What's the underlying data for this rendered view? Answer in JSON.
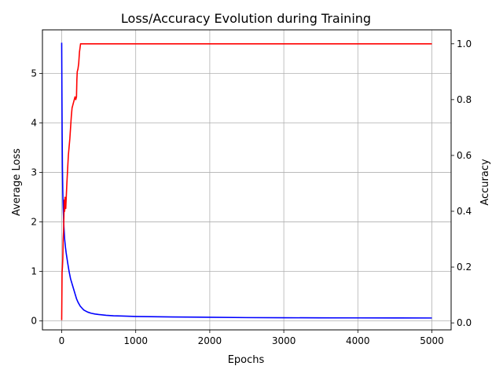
{
  "chart_data": {
    "type": "line",
    "title": "Loss/Accuracy Evolution during Training",
    "xlabel": "Epochs",
    "ylabel_left": "Average Loss",
    "ylabel_right": "Accuracy",
    "xlim": [
      -260,
      5260
    ],
    "ylim_left": [
      -0.18,
      5.88
    ],
    "ylim_right": [
      -0.025,
      1.05
    ],
    "x_ticks": [
      0,
      1000,
      2000,
      3000,
      4000,
      5000
    ],
    "x_tick_labels": [
      "0",
      "1000",
      "2000",
      "3000",
      "4000",
      "5000"
    ],
    "y_left_ticks": [
      0,
      1,
      2,
      3,
      4,
      5
    ],
    "y_left_tick_labels": [
      "0",
      "1",
      "2",
      "3",
      "4",
      "5"
    ],
    "y_right_ticks": [
      0.0,
      0.2,
      0.4,
      0.6,
      0.8,
      1.0
    ],
    "y_right_tick_labels": [
      "0.0",
      "0.2",
      "0.4",
      "0.6",
      "0.8",
      "1.0"
    ],
    "grid": true,
    "series": [
      {
        "axis": "left",
        "color": "#0000ff",
        "x": [
          0,
          3,
          6,
          10,
          15,
          20,
          30,
          40,
          50,
          60,
          80,
          100,
          120,
          150,
          180,
          200,
          220,
          250,
          280,
          300,
          350,
          400,
          450,
          500,
          600,
          700,
          800,
          1000,
          1500,
          2000,
          2500,
          3000,
          3500,
          4000,
          4500,
          5000
        ],
        "values": [
          5.62,
          4.6,
          3.8,
          3.1,
          2.6,
          2.3,
          1.9,
          1.65,
          1.5,
          1.38,
          1.18,
          1.0,
          0.85,
          0.7,
          0.55,
          0.45,
          0.38,
          0.3,
          0.25,
          0.22,
          0.18,
          0.155,
          0.14,
          0.13,
          0.115,
          0.105,
          0.1,
          0.09,
          0.08,
          0.075,
          0.068,
          0.065,
          0.063,
          0.062,
          0.061,
          0.06
        ]
      },
      {
        "axis": "right",
        "color": "#ff0000",
        "x": [
          0,
          5,
          10,
          15,
          20,
          25,
          30,
          35,
          40,
          45,
          50,
          55,
          60,
          70,
          80,
          90,
          100,
          110,
          120,
          130,
          140,
          150,
          160,
          170,
          180,
          190,
          200,
          205,
          210,
          220,
          230,
          240,
          250,
          255,
          260,
          5000
        ],
        "values": [
          0.01,
          0.18,
          0.2,
          0.23,
          0.3,
          0.33,
          0.38,
          0.44,
          0.4,
          0.45,
          0.43,
          0.41,
          0.44,
          0.5,
          0.55,
          0.6,
          0.63,
          0.66,
          0.7,
          0.74,
          0.77,
          0.78,
          0.79,
          0.8,
          0.81,
          0.8,
          0.81,
          0.87,
          0.9,
          0.91,
          0.93,
          0.97,
          0.99,
          1.0,
          1.0,
          1.0
        ]
      }
    ]
  }
}
